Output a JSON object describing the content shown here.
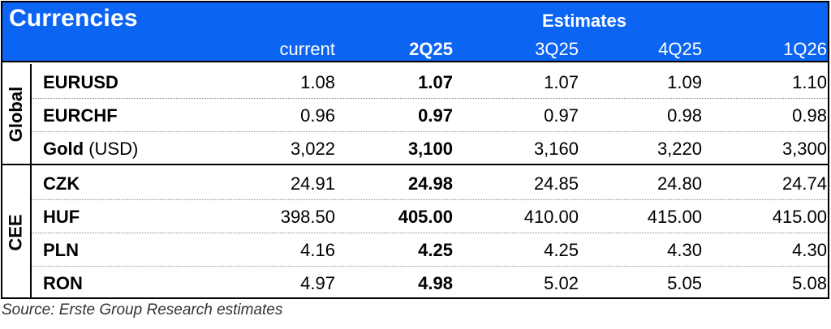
{
  "table": {
    "title": "Currencies",
    "estimates_label": "Estimates",
    "columns": [
      "current",
      "2Q25",
      "3Q25",
      "4Q25",
      "1Q26"
    ],
    "groups": [
      {
        "label": "Global",
        "rows": [
          {
            "name": "EURUSD",
            "suffix": "",
            "values": [
              "1.08",
              "1.07",
              "1.07",
              "1.09",
              "1.10"
            ]
          },
          {
            "name": "EURCHF",
            "suffix": "",
            "values": [
              "0.96",
              "0.97",
              "0.97",
              "0.98",
              "0.98"
            ]
          },
          {
            "name": "Gold",
            "suffix": " (USD)",
            "values": [
              "3,022",
              "3,100",
              "3,160",
              "3,220",
              "3,300"
            ]
          }
        ]
      },
      {
        "label": "CEE",
        "rows": [
          {
            "name": "CZK",
            "suffix": "",
            "values": [
              "24.91",
              "24.98",
              "24.85",
              "24.80",
              "24.74"
            ]
          },
          {
            "name": "HUF",
            "suffix": "",
            "values": [
              "398.50",
              "405.00",
              "410.00",
              "415.00",
              "415.00"
            ]
          },
          {
            "name": "PLN",
            "suffix": "",
            "values": [
              "4.16",
              "4.25",
              "4.25",
              "4.30",
              "4.30"
            ]
          },
          {
            "name": "RON",
            "suffix": "",
            "values": [
              "4.97",
              "4.98",
              "5.02",
              "5.05",
              "5.08"
            ]
          }
        ]
      }
    ]
  },
  "source": "Source: Erste Group Research estimates",
  "colors": {
    "header_bg": "#0b64f2",
    "header_text": "#ffffff"
  }
}
